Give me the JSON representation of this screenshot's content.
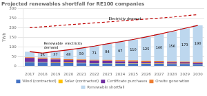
{
  "chart_data": {
    "type": "bar",
    "title": "Projected renewables shortfall for RE100 companies",
    "ylabel": "TWh",
    "categories": [
      2017,
      2018,
      2019,
      2020,
      2021,
      2022,
      2023,
      2024,
      2025,
      2026,
      2027,
      2028,
      2029,
      2030
    ],
    "stacked": true,
    "grid": "y",
    "legend": "bottom",
    "ylim": [
      0,
      300
    ],
    "yticks": [
      0,
      50,
      100,
      150,
      200,
      250,
      300
    ],
    "series": [
      {
        "name": "Wind (contracted)",
        "color": "#4472c4",
        "values": [
          20,
          18,
          17,
          16,
          15,
          14,
          14,
          13,
          13,
          12,
          12,
          11,
          11,
          10
        ]
      },
      {
        "name": "Solar (contracted)",
        "color": "#ffc000",
        "values": [
          2,
          2,
          2,
          2,
          2,
          2,
          2,
          2,
          2,
          2,
          2,
          2,
          2,
          2
        ]
      },
      {
        "name": "Certificate purchases",
        "color": "#7030a0",
        "values": [
          20,
          18,
          16,
          14,
          13,
          12,
          11,
          10,
          9,
          8,
          7,
          7,
          6,
          5
        ]
      },
      {
        "name": "Onsite generation",
        "color": "#ed7d31",
        "values": [
          5,
          5,
          5,
          5,
          5,
          5,
          5,
          5,
          5,
          5,
          5,
          5,
          5,
          5
        ]
      },
      {
        "name": "Renewable shortfall",
        "color": "#bdd7ee",
        "values": [
          28,
          25,
          37,
          48,
          59,
          71,
          84,
          97,
          110,
          125,
          140,
          156,
          173,
          190
        ],
        "data_labels": true,
        "value_labels": [
          null,
          "25",
          "37",
          "48",
          "59",
          "71",
          "84",
          "97",
          "110",
          "125",
          "140",
          "156",
          "173",
          "190"
        ]
      },
      {
        "type": "line",
        "color": "#c00000",
        "line_style": "dashed",
        "values": [
          200,
          205,
          210,
          215,
          220,
          225,
          230,
          235,
          240,
          245,
          250,
          255,
          262,
          268
        ]
      },
      {
        "type": "line",
        "color": "#c00000",
        "line_style": "solid",
        "values": [
          75,
          68,
          77,
          85,
          94,
          104,
          116,
          127,
          139,
          152,
          166,
          181,
          197,
          212
        ]
      }
    ],
    "annotations": [
      {
        "text": "Renewable  electricity\ndemand",
        "x": 2018,
        "y": 86
      },
      {
        "text": "Electricity demand",
        "x": 2023,
        "y": 236
      }
    ]
  }
}
